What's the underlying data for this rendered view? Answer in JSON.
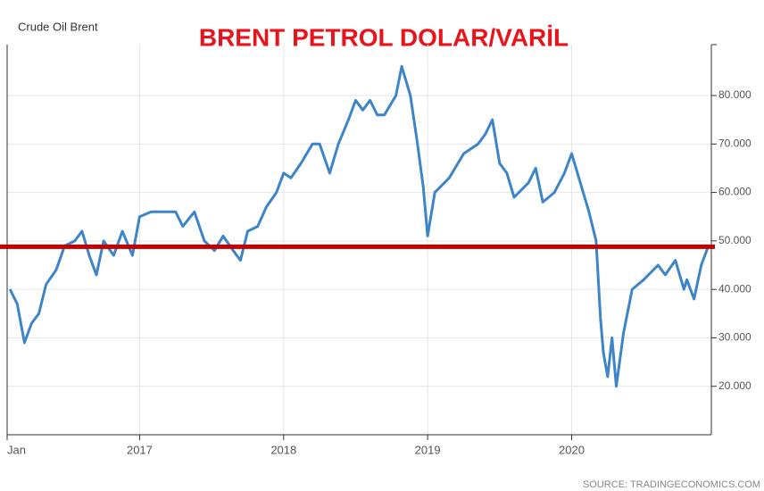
{
  "chart_data": {
    "type": "line",
    "title": "BRENT PETROL DOLAR/VARİL",
    "source": "SOURCE: TRADINGECONOMICS.COM",
    "x": [
      2016.1,
      2016.15,
      2016.2,
      2016.25,
      2016.3,
      2016.35,
      2016.42,
      2016.48,
      2016.55,
      2016.6,
      2016.65,
      2016.7,
      2016.75,
      2016.82,
      2016.88,
      2016.95,
      2017.0,
      2017.08,
      2017.15,
      2017.25,
      2017.3,
      2017.38,
      2017.45,
      2017.52,
      2017.58,
      2017.65,
      2017.7,
      2017.75,
      2017.82,
      2017.88,
      2017.95,
      2018.0,
      2018.05,
      2018.12,
      2018.2,
      2018.25,
      2018.32,
      2018.38,
      2018.45,
      2018.5,
      2018.55,
      2018.6,
      2018.65,
      2018.7,
      2018.78,
      2018.82,
      2018.88,
      2018.93,
      2018.97,
      2019.0,
      2019.05,
      2019.15,
      2019.25,
      2019.35,
      2019.4,
      2019.45,
      2019.5,
      2019.55,
      2019.6,
      2019.7,
      2019.75,
      2019.8,
      2019.88,
      2019.95,
      2020.0,
      2020.05,
      2020.12,
      2020.17,
      2020.2,
      2020.22,
      2020.25,
      2020.28,
      2020.31,
      2020.36,
      2020.42,
      2020.5,
      2020.6,
      2020.65,
      2020.72,
      2020.78,
      2020.8,
      2020.85,
      2020.9,
      2020.95
    ],
    "series": [
      {
        "name": "Crude Oil Brent",
        "color": "#3d85c6",
        "values": [
          40,
          37,
          29,
          33,
          35,
          41,
          44,
          49,
          50,
          52,
          47,
          43,
          50,
          47,
          52,
          47,
          55,
          56,
          56,
          56,
          53,
          56,
          50,
          48,
          51,
          48,
          46,
          52,
          53,
          57,
          60,
          64,
          63,
          66,
          70,
          70,
          64,
          70,
          75,
          79,
          77,
          79,
          76,
          76,
          80,
          86,
          80,
          70,
          61,
          51,
          60,
          63,
          68,
          70,
          72,
          75,
          66,
          64,
          59,
          62,
          65,
          58,
          60,
          64,
          68,
          63,
          56,
          50,
          34,
          27,
          22,
          30,
          20,
          31,
          40,
          42,
          45,
          43,
          46,
          40,
          42,
          38,
          45,
          49
        ]
      }
    ],
    "reference_line": {
      "value": 48.8,
      "color": "#c00000"
    },
    "xlim": [
      2016.08,
      2020.97
    ],
    "xticks": [
      {
        "value": 2016.08,
        "label": "Jan"
      },
      2017,
      2018,
      2019,
      2020
    ],
    "ylim": [
      10,
      90.5
    ],
    "yticks": [
      {
        "value": 20,
        "label": "20.000"
      },
      {
        "value": 30,
        "label": "30.000"
      },
      {
        "value": 40,
        "label": "40.000"
      },
      {
        "value": 50,
        "label": "50.000"
      },
      {
        "value": 60,
        "label": "60.000"
      },
      {
        "value": 70,
        "label": "70.000"
      },
      {
        "value": 80,
        "label": "80.000"
      }
    ],
    "grid": true
  }
}
